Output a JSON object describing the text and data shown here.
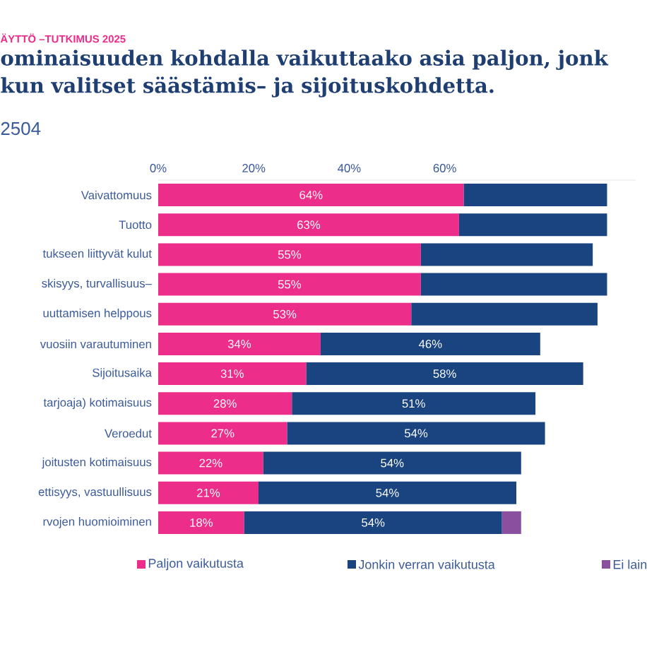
{
  "chart_data": {
    "type": "bar",
    "orientation": "horizontal",
    "stacked": true,
    "title": "ominaisuuden kohdalla vaikuttaako asia paljon, jonk kun valitset säästämis– ja sijoituskohdetta.",
    "subtitle": "2504",
    "annotations": [
      "ÄYTTÖ –TUTKIMUS 2025"
    ],
    "categories": [
      "Vaivattomuus",
      "Tuotto",
      "tukseen liittyvät kulut",
      "skisyys, turvallisuus–",
      "uuttamisen helppous",
      "vuosiin varautuminen",
      "Sijoitusaika",
      "tarjoaja) kotimaisuus",
      "Veroedut",
      "joitusten kotimaisuus",
      "ettisyys, vastuullisuus",
      "rvojen huomioiminen"
    ],
    "series": [
      {
        "name": "Paljon vaikutusta",
        "color": "#ec2d8a",
        "values": [
          64,
          63,
          55,
          55,
          53,
          34,
          31,
          28,
          27,
          22,
          21,
          18
        ],
        "value_labels": [
          "64%",
          "63%",
          "55%",
          "55%",
          "53%",
          "34%",
          "31%",
          "28%",
          "27%",
          "22%",
          "21%",
          "18%"
        ]
      },
      {
        "name": "Jonkin verran vaikutusta",
        "color": "#1a4480",
        "values": [
          30,
          31,
          36,
          39,
          39,
          46,
          58,
          51,
          54,
          54,
          54,
          54
        ],
        "value_labels": [
          null,
          null,
          null,
          null,
          null,
          "46%",
          "58%",
          "51%",
          "54%",
          "54%",
          "54%",
          "54%"
        ]
      },
      {
        "name": "Ei lain",
        "color": "#8a4f9e",
        "values": [
          null,
          null,
          null,
          null,
          null,
          null,
          null,
          null,
          null,
          null,
          null,
          4
        ]
      }
    ],
    "xlim": [
      0,
      100
    ],
    "xticks": [
      {
        "value": 0,
        "label": "0%"
      },
      {
        "value": 20,
        "label": "20%"
      },
      {
        "value": 40,
        "label": "40%"
      },
      {
        "value": 60,
        "label": "60%"
      }
    ],
    "grid": false,
    "legend": "bottom"
  }
}
